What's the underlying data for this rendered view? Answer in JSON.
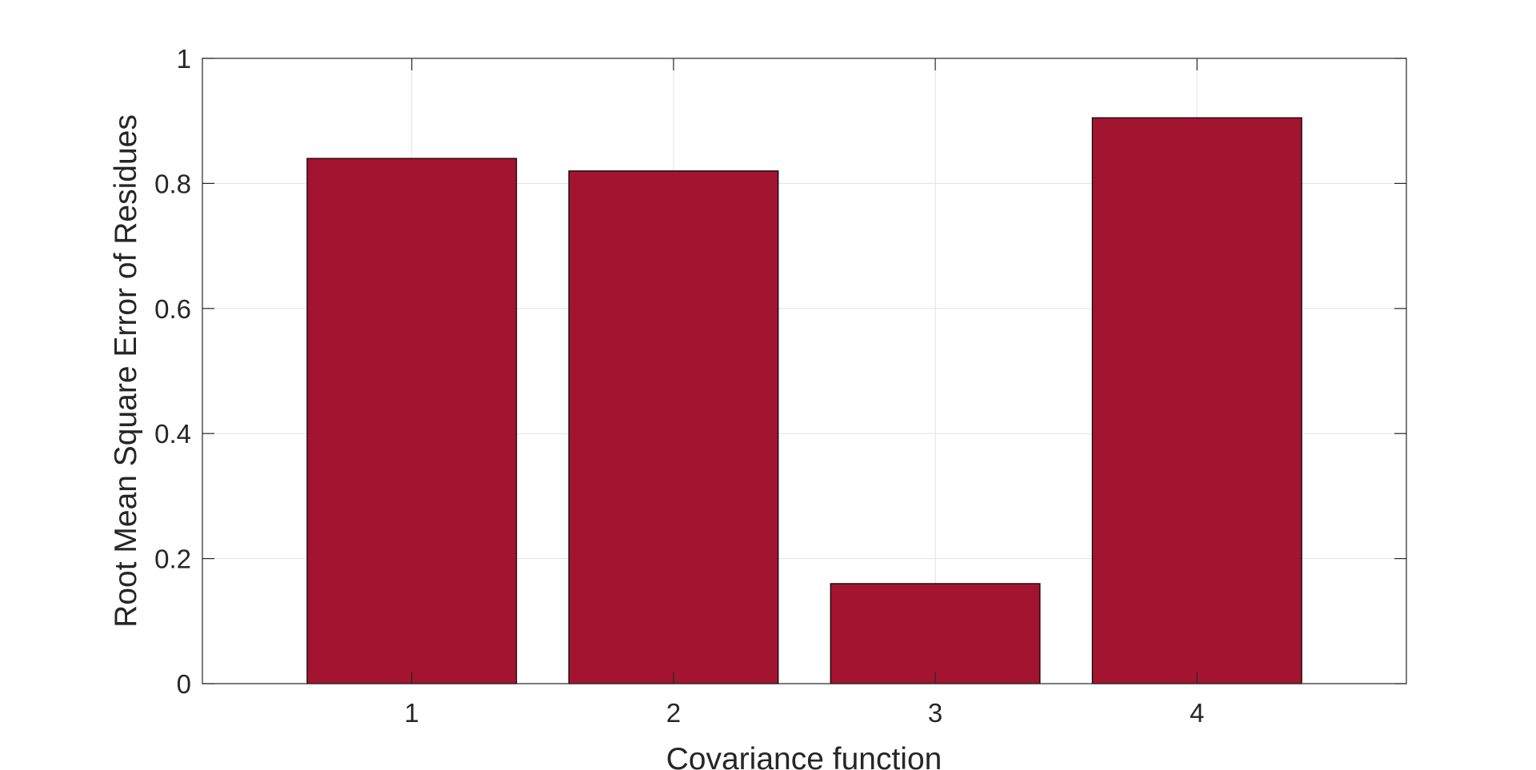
{
  "chart_data": {
    "type": "bar",
    "categories": [
      "1",
      "2",
      "3",
      "4"
    ],
    "values": [
      0.84,
      0.82,
      0.16,
      0.905
    ],
    "title": "",
    "xlabel": "Covariance function",
    "ylabel": "Root Mean Square Error of Residues",
    "xlim": [
      0.2,
      4.8
    ],
    "ylim": [
      0,
      1
    ],
    "yticks": [
      0,
      0.2,
      0.4,
      0.6,
      0.8,
      1
    ],
    "ytick_labels": [
      "0",
      "0.2",
      "0.4",
      "0.6",
      "0.8",
      "1"
    ],
    "grid": true,
    "legend": "none",
    "bar_color": "#a21430",
    "bar_edge_color": "#000000"
  }
}
